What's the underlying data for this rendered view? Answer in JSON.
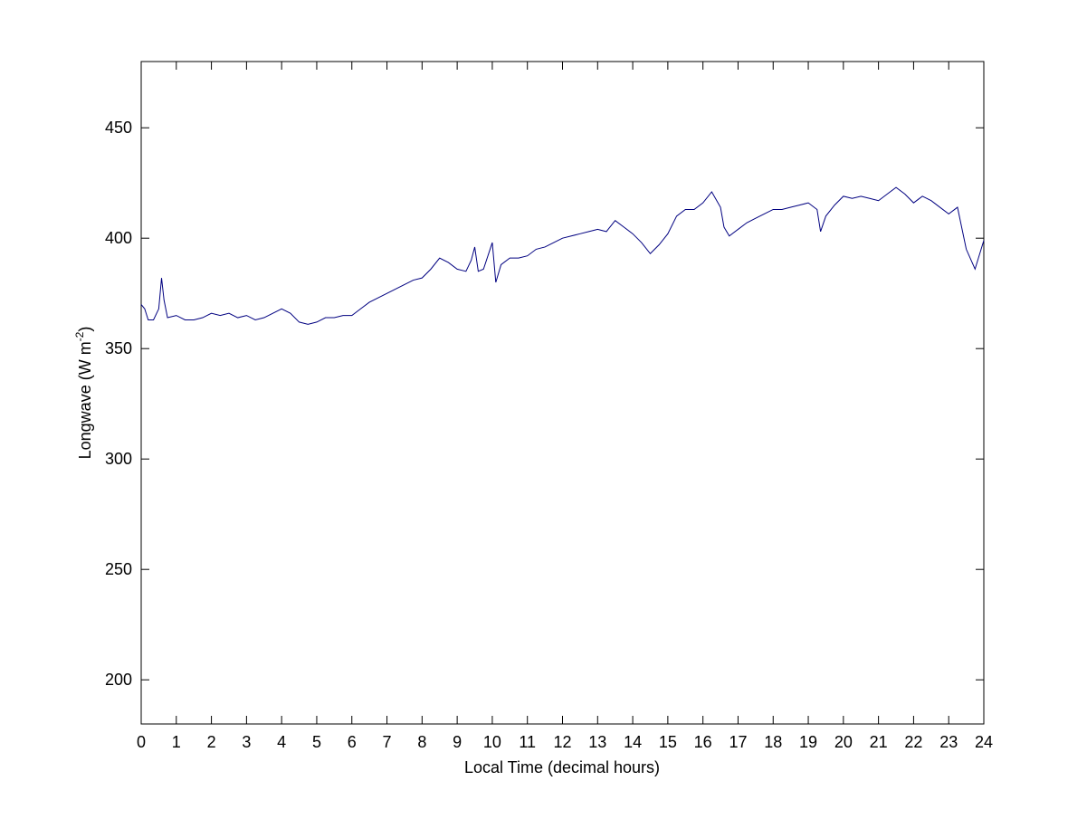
{
  "chart_data": {
    "type": "line",
    "xlabel": "Local Time (decimal hours)",
    "ylabel_parts": [
      "Longwave (W m",
      "-2",
      ")"
    ],
    "xlim": [
      0,
      24
    ],
    "ylim": [
      180,
      480
    ],
    "xticks": [
      0,
      1,
      2,
      3,
      4,
      5,
      6,
      7,
      8,
      9,
      10,
      11,
      12,
      13,
      14,
      15,
      16,
      17,
      18,
      19,
      20,
      21,
      22,
      23,
      24
    ],
    "yticks": [
      200,
      250,
      300,
      350,
      400,
      450
    ],
    "color": "#000080",
    "x": [
      0,
      0.1,
      0.2,
      0.35,
      0.5,
      0.58,
      0.65,
      0.75,
      1,
      1.25,
      1.5,
      1.75,
      2,
      2.25,
      2.5,
      2.75,
      3,
      3.25,
      3.5,
      3.75,
      4,
      4.25,
      4.5,
      4.75,
      5,
      5.25,
      5.5,
      5.75,
      6,
      6.25,
      6.5,
      6.75,
      7,
      7.25,
      7.5,
      7.75,
      8,
      8.25,
      8.5,
      8.75,
      9,
      9.25,
      9.4,
      9.5,
      9.6,
      9.75,
      10,
      10.1,
      10.25,
      10.5,
      10.75,
      11,
      11.25,
      11.5,
      11.75,
      12,
      12.25,
      12.5,
      12.75,
      13,
      13.25,
      13.5,
      13.75,
      14,
      14.25,
      14.5,
      14.75,
      15,
      15.25,
      15.5,
      15.75,
      16,
      16.25,
      16.5,
      16.6,
      16.75,
      17,
      17.25,
      17.5,
      17.75,
      18,
      18.25,
      18.5,
      18.75,
      19,
      19.25,
      19.35,
      19.5,
      19.75,
      20,
      20.25,
      20.5,
      20.75,
      21,
      21.25,
      21.5,
      21.75,
      22,
      22.25,
      22.5,
      22.75,
      23,
      23.25,
      23.5,
      23.75,
      24
    ],
    "values": [
      370,
      368,
      363,
      363,
      368,
      382,
      372,
      364,
      365,
      363,
      363,
      364,
      366,
      365,
      366,
      364,
      365,
      363,
      364,
      366,
      368,
      366,
      362,
      361,
      362,
      364,
      364,
      365,
      365,
      368,
      371,
      373,
      375,
      377,
      379,
      381,
      382,
      386,
      391,
      389,
      386,
      385,
      390,
      396,
      385,
      386,
      398,
      380,
      388,
      391,
      391,
      392,
      395,
      396,
      398,
      400,
      401,
      402,
      403,
      404,
      403,
      408,
      405,
      402,
      398,
      393,
      397,
      402,
      410,
      413,
      413,
      416,
      421,
      414,
      405,
      401,
      404,
      407,
      409,
      411,
      413,
      413,
      414,
      415,
      416,
      413,
      403,
      410,
      415,
      419,
      418,
      419,
      418,
      417,
      420,
      423,
      420,
      416,
      419,
      417,
      414,
      411,
      414,
      395,
      386,
      399
    ]
  }
}
